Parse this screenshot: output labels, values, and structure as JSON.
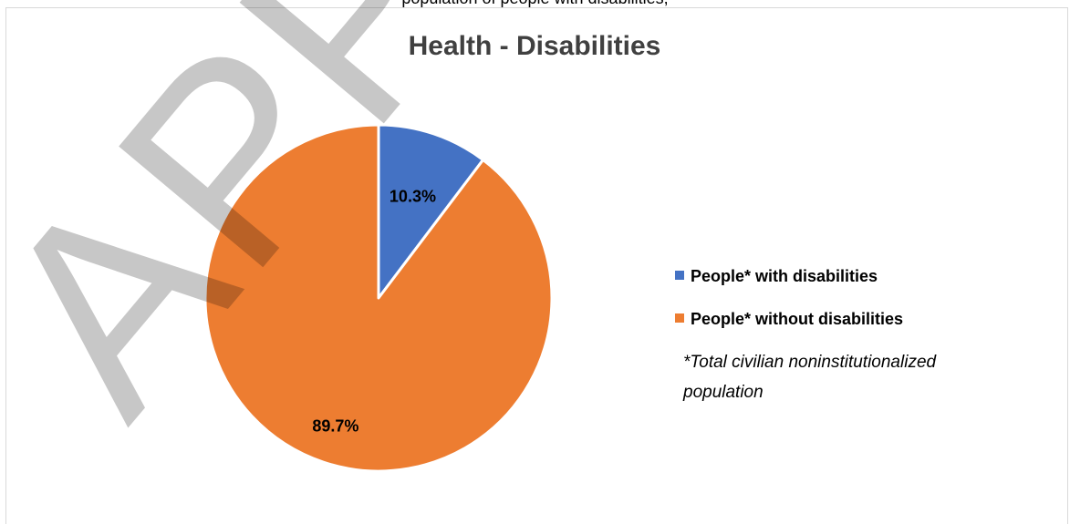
{
  "document": {
    "header_fragment": "population of people with disabilities,",
    "watermark": "APPROVED"
  },
  "chart_data": {
    "type": "pie",
    "title": "Health - Disabilities",
    "slices": [
      {
        "name": "People* with disabilities",
        "value": 10.3,
        "label": "10.3%",
        "color": "#4472C4"
      },
      {
        "name": "People* without disabilities",
        "value": 89.7,
        "label": "89.7%",
        "color": "#ED7D31"
      }
    ],
    "start_angle_deg": 0,
    "direction": "clockwise",
    "legend_position": "right",
    "footnote_lines": [
      "*Total civilian noninstitutionalized",
      "population"
    ]
  }
}
